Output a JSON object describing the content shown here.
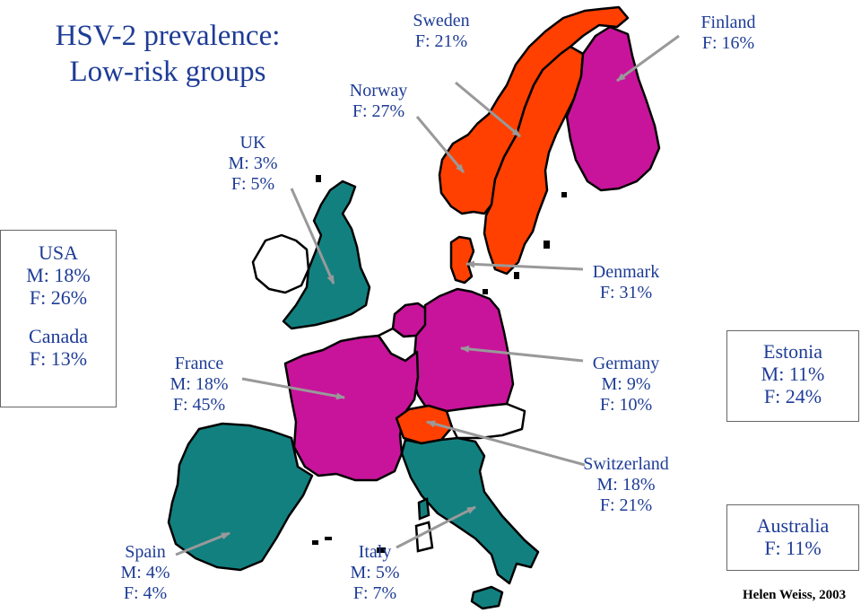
{
  "title": [
    "HSV-2 prevalence:",
    "Low-risk groups"
  ],
  "colors": {
    "teal": "#138080",
    "magenta": "#c8149b",
    "orange": "#ff4000",
    "white": "#ffffff",
    "text": "#1e3c96",
    "arrow": "#999999"
  },
  "countries": [
    {
      "name": "Norway",
      "color": "orange"
    },
    {
      "name": "Sweden",
      "color": "orange"
    },
    {
      "name": "Finland",
      "color": "magenta"
    },
    {
      "name": "Denmark",
      "color": "orange"
    },
    {
      "name": "UK",
      "color": "teal"
    },
    {
      "name": "Ireland",
      "color": "white"
    },
    {
      "name": "France",
      "color": "magenta"
    },
    {
      "name": "Germany",
      "color": "magenta"
    },
    {
      "name": "Netherlands",
      "color": "magenta"
    },
    {
      "name": "Belgium",
      "color": "white"
    },
    {
      "name": "Switzerland",
      "color": "orange"
    },
    {
      "name": "Austria",
      "color": "white"
    },
    {
      "name": "Italy",
      "color": "teal"
    },
    {
      "name": "Spain",
      "color": "teal"
    }
  ],
  "labels": {
    "sweden": [
      "Sweden",
      "F: 21%"
    ],
    "finland": [
      "Finland",
      "F: 16%"
    ],
    "norway": [
      "Norway",
      "F: 27%"
    ],
    "uk": [
      "UK",
      "M: 3%",
      "F: 5%"
    ],
    "denmark": [
      "Denmark",
      "F: 31%"
    ],
    "france": [
      "France",
      "M: 18%",
      "F: 45%"
    ],
    "germany": [
      "Germany",
      "M: 9%",
      "F: 10%"
    ],
    "switzerland": [
      "Switzerland",
      "M: 18%",
      "F: 21%"
    ],
    "spain": [
      "Spain",
      "M: 4%",
      "F: 4%"
    ],
    "italy": [
      "Italy",
      "M: 5%",
      "F: 7%"
    ]
  },
  "boxes": {
    "usa_canada": [
      "USA",
      "M: 18%",
      "F: 26%",
      "Canada",
      "F: 13%"
    ],
    "estonia": [
      "Estonia",
      "M: 11%",
      "F: 24%"
    ],
    "australia": [
      "Australia",
      "F: 11%"
    ]
  },
  "credit": "Helen Weiss, 2003"
}
